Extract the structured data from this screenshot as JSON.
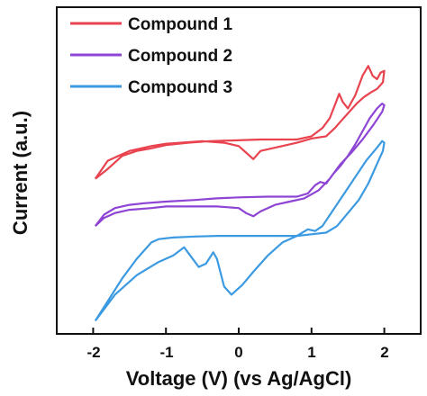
{
  "chart_data": {
    "type": "line",
    "xlabel": "Voltage (V) (vs Ag/AgCl)",
    "ylabel": "Current (a.u.)",
    "xlim": [
      -2.5,
      2.5
    ],
    "ylim": [
      0,
      1
    ],
    "x_ticks": [
      -2,
      -1,
      0,
      1,
      2
    ],
    "x_tick_labels": [
      "-2",
      "-1",
      "0",
      "1",
      "2"
    ],
    "y_ticks_shown": false,
    "grid": false,
    "legend_position": "top-left",
    "series": [
      {
        "name": "Compound 1",
        "color": "#e8434f",
        "points": [
          [
            -1.97,
            0.475
          ],
          [
            -1.8,
            0.505
          ],
          [
            -1.6,
            0.545
          ],
          [
            -1.4,
            0.56
          ],
          [
            -1.2,
            0.568
          ],
          [
            -1.0,
            0.578
          ],
          [
            -0.7,
            0.585
          ],
          [
            -0.4,
            0.59
          ],
          [
            -0.1,
            0.592
          ],
          [
            0.3,
            0.595
          ],
          [
            0.8,
            0.595
          ],
          [
            1.0,
            0.605
          ],
          [
            1.15,
            0.63
          ],
          [
            1.25,
            0.66
          ],
          [
            1.32,
            0.7
          ],
          [
            1.38,
            0.735
          ],
          [
            1.43,
            0.71
          ],
          [
            1.5,
            0.69
          ],
          [
            1.6,
            0.73
          ],
          [
            1.7,
            0.79
          ],
          [
            1.78,
            0.82
          ],
          [
            1.84,
            0.79
          ],
          [
            1.9,
            0.78
          ],
          [
            1.95,
            0.8
          ],
          [
            2.0,
            0.805
          ],
          [
            1.98,
            0.77
          ],
          [
            1.9,
            0.75
          ],
          [
            1.82,
            0.74
          ],
          [
            1.72,
            0.725
          ],
          [
            1.62,
            0.705
          ],
          [
            1.52,
            0.68
          ],
          [
            1.42,
            0.655
          ],
          [
            1.32,
            0.63
          ],
          [
            1.2,
            0.605
          ],
          [
            1.0,
            0.598
          ],
          [
            0.8,
            0.585
          ],
          [
            0.5,
            0.57
          ],
          [
            0.3,
            0.56
          ],
          [
            0.2,
            0.535
          ],
          [
            0.1,
            0.555
          ],
          [
            0.0,
            0.575
          ],
          [
            -0.2,
            0.585
          ],
          [
            -0.5,
            0.59
          ],
          [
            -0.8,
            0.585
          ],
          [
            -1.0,
            0.582
          ],
          [
            -1.2,
            0.575
          ],
          [
            -1.5,
            0.56
          ],
          [
            -1.8,
            0.53
          ],
          [
            -1.97,
            0.475
          ]
        ]
      },
      {
        "name": "Compound 2",
        "color": "#8e44d4",
        "points": [
          [
            -1.97,
            0.33
          ],
          [
            -1.85,
            0.365
          ],
          [
            -1.7,
            0.385
          ],
          [
            -1.5,
            0.395
          ],
          [
            -1.3,
            0.4
          ],
          [
            -1.0,
            0.405
          ],
          [
            -0.6,
            0.41
          ],
          [
            -0.3,
            0.415
          ],
          [
            0.0,
            0.418
          ],
          [
            0.4,
            0.42
          ],
          [
            0.8,
            0.42
          ],
          [
            0.95,
            0.43
          ],
          [
            1.05,
            0.455
          ],
          [
            1.12,
            0.465
          ],
          [
            1.2,
            0.46
          ],
          [
            1.3,
            0.49
          ],
          [
            1.4,
            0.515
          ],
          [
            1.5,
            0.545
          ],
          [
            1.6,
            0.58
          ],
          [
            1.7,
            0.62
          ],
          [
            1.8,
            0.66
          ],
          [
            1.9,
            0.69
          ],
          [
            1.97,
            0.705
          ],
          [
            2.0,
            0.7
          ],
          [
            1.97,
            0.68
          ],
          [
            1.85,
            0.64
          ],
          [
            1.7,
            0.595
          ],
          [
            1.55,
            0.555
          ],
          [
            1.4,
            0.52
          ],
          [
            1.25,
            0.475
          ],
          [
            1.1,
            0.44
          ],
          [
            0.9,
            0.415
          ],
          [
            0.7,
            0.405
          ],
          [
            0.5,
            0.395
          ],
          [
            0.3,
            0.375
          ],
          [
            0.2,
            0.36
          ],
          [
            0.1,
            0.37
          ],
          [
            0.0,
            0.385
          ],
          [
            -0.3,
            0.39
          ],
          [
            -0.7,
            0.39
          ],
          [
            -1.0,
            0.39
          ],
          [
            -1.2,
            0.385
          ],
          [
            -1.5,
            0.38
          ],
          [
            -1.7,
            0.37
          ],
          [
            -1.85,
            0.355
          ],
          [
            -1.97,
            0.33
          ]
        ]
      },
      {
        "name": "Compound 3",
        "color": "#3b9ae1",
        "points": [
          [
            -1.97,
            0.04
          ],
          [
            -1.8,
            0.1
          ],
          [
            -1.6,
            0.17
          ],
          [
            -1.4,
            0.23
          ],
          [
            -1.2,
            0.28
          ],
          [
            -1.1,
            0.29
          ],
          [
            -0.9,
            0.295
          ],
          [
            -0.6,
            0.298
          ],
          [
            -0.3,
            0.3
          ],
          [
            0.0,
            0.3
          ],
          [
            0.4,
            0.3
          ],
          [
            0.8,
            0.3
          ],
          [
            0.95,
            0.32
          ],
          [
            1.05,
            0.315
          ],
          [
            1.15,
            0.33
          ],
          [
            1.3,
            0.38
          ],
          [
            1.45,
            0.43
          ],
          [
            1.6,
            0.48
          ],
          [
            1.75,
            0.53
          ],
          [
            1.9,
            0.57
          ],
          [
            1.97,
            0.59
          ],
          [
            2.0,
            0.585
          ],
          [
            1.98,
            0.56
          ],
          [
            1.9,
            0.52
          ],
          [
            1.78,
            0.46
          ],
          [
            1.65,
            0.41
          ],
          [
            1.5,
            0.37
          ],
          [
            1.35,
            0.33
          ],
          [
            1.2,
            0.31
          ],
          [
            1.0,
            0.305
          ],
          [
            0.8,
            0.3
          ],
          [
            0.6,
            0.28
          ],
          [
            0.4,
            0.24
          ],
          [
            0.2,
            0.19
          ],
          [
            0.05,
            0.15
          ],
          [
            -0.1,
            0.12
          ],
          [
            -0.2,
            0.145
          ],
          [
            -0.3,
            0.23
          ],
          [
            -0.35,
            0.25
          ],
          [
            -0.45,
            0.215
          ],
          [
            -0.55,
            0.205
          ],
          [
            -0.65,
            0.235
          ],
          [
            -0.75,
            0.265
          ],
          [
            -0.9,
            0.24
          ],
          [
            -1.1,
            0.22
          ],
          [
            -1.4,
            0.18
          ],
          [
            -1.7,
            0.12
          ],
          [
            -1.97,
            0.04
          ]
        ]
      }
    ]
  }
}
